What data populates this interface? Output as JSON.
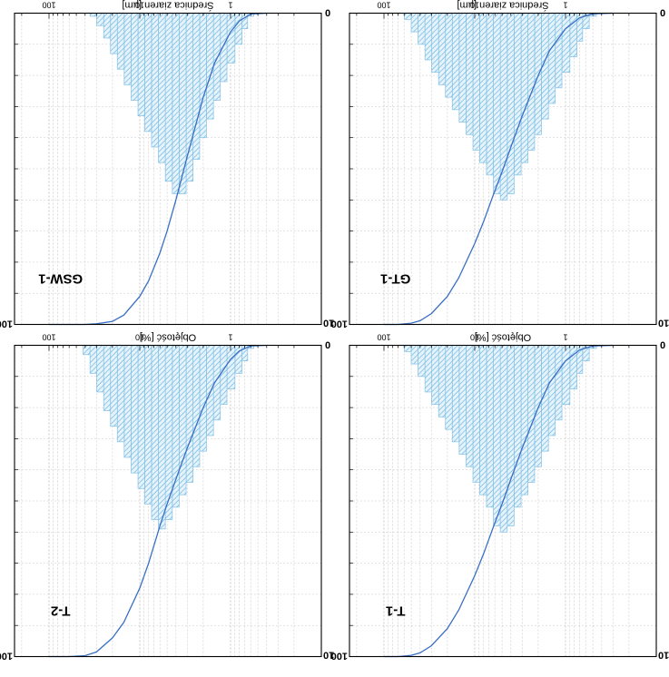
{
  "figure": {
    "orientation": "rotated 180 degrees",
    "colors": {
      "bars_fill": "#e6f3fb",
      "bars_hatch": "#6fb7e0",
      "bars_edge": "#7fbfe6",
      "curve": "#3a6fc4",
      "axis": "#000000",
      "grid": "#c8c8c8"
    }
  },
  "chart_data": [
    {
      "type": "bar",
      "sample_label": "GT-1",
      "xlabel": "Średnica ziaren [µm]",
      "ylabel": "",
      "x_scale": "log",
      "x_ticks": [
        "1",
        "10",
        "100"
      ],
      "y_ticks_left": [
        "0",
        "10"
      ],
      "y_ticks_right": [
        "100"
      ],
      "ylim": [
        0,
        10
      ],
      "y2lim": [
        0,
        100
      ],
      "bins": {
        "x": [
          0.5,
          0.6,
          0.7,
          0.8,
          1.0,
          1.2,
          1.4,
          1.7,
          2.0,
          2.4,
          2.8,
          3.4,
          4.0,
          4.8,
          5.7,
          6.8,
          8.1,
          9.6,
          11.4,
          13.6,
          16.2,
          19.3,
          22.9,
          27.3,
          32.4,
          38.6,
          45.9,
          54.6
        ],
        "values": [
          0.1,
          0.5,
          0.9,
          1.4,
          1.9,
          2.4,
          2.9,
          3.4,
          3.9,
          4.4,
          4.8,
          5.2,
          5.8,
          6.0,
          5.8,
          5.2,
          4.8,
          4.4,
          3.9,
          3.5,
          3.1,
          2.7,
          2.3,
          1.9,
          1.5,
          1.0,
          0.6,
          0.2
        ]
      },
      "cumulative": {
        "x": [
          0.3,
          0.5,
          0.7,
          1.0,
          1.5,
          2.0,
          3.0,
          4.0,
          5.0,
          6.0,
          8.0,
          10.0,
          15.0,
          20.0,
          30.0,
          40.0,
          50.0,
          70.0,
          100.0
        ],
        "values": [
          0,
          0.2,
          1.5,
          5,
          12,
          20,
          33,
          43,
          51,
          57,
          67,
          74,
          85,
          91,
          96.5,
          98.8,
          99.6,
          100,
          100
        ]
      }
    },
    {
      "type": "bar",
      "sample_label": "GSW-1",
      "xlabel": "Średnica ziaren [µm]",
      "ylabel": "",
      "x_scale": "log",
      "x_ticks": [
        "1",
        "10",
        "100"
      ],
      "y_ticks_left": [
        "0",
        "10"
      ],
      "y_ticks_right": [
        "100"
      ],
      "ylim": [
        0,
        10
      ],
      "y2lim": [
        0,
        100
      ],
      "bins": {
        "x": [
          0.6,
          0.7,
          0.8,
          1.0,
          1.2,
          1.4,
          1.7,
          2.0,
          2.4,
          2.8,
          3.4,
          4.0,
          4.8,
          5.7,
          6.8,
          8.1,
          9.6,
          11.4,
          13.6,
          16.2,
          19.3,
          22.9,
          27.3,
          32.4
        ],
        "values": [
          0.1,
          0.5,
          1.0,
          1.6,
          2.2,
          2.8,
          3.4,
          4.0,
          4.7,
          5.4,
          5.8,
          5.8,
          5.4,
          4.8,
          4.3,
          3.8,
          3.3,
          2.8,
          2.3,
          1.8,
          1.3,
          0.8,
          0.4,
          0.1
        ]
      },
      "cumulative": {
        "x": [
          0.4,
          0.6,
          0.8,
          1.0,
          1.5,
          2.0,
          3.0,
          4.0,
          5.0,
          6.0,
          8.0,
          10.0,
          15.0,
          20.0,
          30.0,
          40.0,
          60.0,
          100.0
        ],
        "values": [
          0,
          0.3,
          2.5,
          6,
          16,
          27,
          46,
          60,
          70,
          77,
          86,
          91,
          97,
          99,
          99.8,
          100,
          100,
          100
        ]
      }
    },
    {
      "type": "bar",
      "sample_label": "T-1",
      "xlabel": "Objętość [%]",
      "ylabel": "",
      "x_scale": "log",
      "x_ticks": [
        "1",
        "10",
        "100"
      ],
      "y_ticks_left": [
        "0",
        "10"
      ],
      "y_ticks_right": [
        "100"
      ],
      "ylim": [
        0,
        10
      ],
      "y2lim": [
        0,
        100
      ],
      "bins": {
        "x": [
          0.5,
          0.6,
          0.7,
          0.8,
          1.0,
          1.2,
          1.4,
          1.7,
          2.0,
          2.4,
          2.8,
          3.4,
          4.0,
          4.8,
          5.7,
          6.8,
          8.1,
          9.6,
          11.4,
          13.6,
          16.2,
          19.3,
          22.9,
          27.3,
          32.4,
          38.6,
          45.9,
          54.6
        ],
        "values": [
          0.1,
          0.5,
          0.9,
          1.4,
          1.9,
          2.4,
          2.9,
          3.4,
          3.9,
          4.4,
          4.8,
          5.2,
          5.8,
          6.0,
          5.8,
          5.2,
          4.8,
          4.4,
          3.9,
          3.5,
          3.1,
          2.7,
          2.3,
          1.9,
          1.5,
          1.0,
          0.6,
          0.2
        ]
      },
      "cumulative": {
        "x": [
          0.3,
          0.5,
          0.7,
          1.0,
          1.5,
          2.0,
          3.0,
          4.0,
          5.0,
          6.0,
          8.0,
          10.0,
          15.0,
          20.0,
          30.0,
          40.0,
          50.0,
          70.0,
          100.0
        ],
        "values": [
          0,
          0.2,
          1.5,
          5,
          12,
          20,
          33,
          43,
          51,
          57,
          67,
          74,
          85,
          91,
          96.5,
          98.8,
          99.6,
          100,
          100
        ]
      }
    },
    {
      "type": "bar",
      "sample_label": "T-2",
      "xlabel": "Objętość [%]",
      "ylabel": "",
      "x_scale": "log",
      "x_ticks": [
        "1",
        "10",
        "100"
      ],
      "y_ticks_left": [
        "0",
        "10"
      ],
      "y_ticks_right": [
        "100"
      ],
      "ylim": [
        0,
        10
      ],
      "y2lim": [
        0,
        100
      ],
      "bins": {
        "x": [
          0.6,
          0.7,
          0.8,
          1.0,
          1.2,
          1.4,
          1.7,
          2.0,
          2.4,
          2.8,
          3.4,
          4.0,
          4.8,
          5.7,
          6.8,
          8.1,
          9.6,
          11.4,
          13.6,
          16.2,
          19.3,
          22.9,
          27.3,
          32.4,
          38.6
        ],
        "values": [
          0.1,
          0.5,
          0.9,
          1.4,
          1.9,
          2.4,
          2.9,
          3.4,
          3.9,
          4.4,
          4.8,
          5.2,
          5.6,
          5.9,
          5.6,
          5.1,
          4.6,
          4.1,
          3.6,
          3.1,
          2.6,
          2.1,
          1.5,
          0.9,
          0.3
        ]
      },
      "cumulative": {
        "x": [
          0.4,
          0.6,
          0.8,
          1.0,
          1.5,
          2.0,
          3.0,
          4.0,
          5.0,
          6.0,
          8.0,
          10.0,
          15.0,
          20.0,
          30.0,
          40.0,
          60.0,
          100.0
        ],
        "values": [
          0,
          0.2,
          1.8,
          4.5,
          12,
          20,
          33,
          43,
          51,
          58,
          70,
          78,
          89,
          94,
          98.5,
          99.7,
          100,
          100
        ]
      }
    }
  ]
}
